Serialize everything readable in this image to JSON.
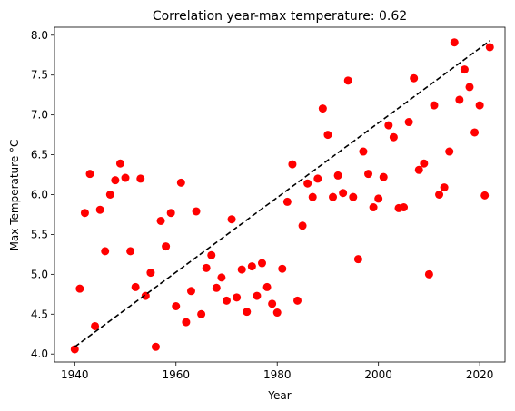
{
  "chart_data": {
    "type": "scatter",
    "title": "Correlation year-max temperature: 0.62",
    "xlabel": "Year",
    "ylabel": "Max Temperature °C",
    "xlim": [
      1936,
      2025
    ],
    "ylim": [
      3.9,
      8.1
    ],
    "grid": false,
    "legend": "none",
    "x_ticks": [
      1940,
      1960,
      1980,
      2000,
      2020
    ],
    "y_ticks": [
      4.0,
      4.5,
      5.0,
      5.5,
      6.0,
      6.5,
      7.0,
      7.5,
      8.0
    ],
    "x_tick_labels": [
      "1940",
      "1960",
      "1980",
      "2000",
      "2020"
    ],
    "y_tick_labels": [
      "4.0",
      "4.5",
      "5.0",
      "5.5",
      "6.0",
      "6.5",
      "7.0",
      "7.5",
      "8.0"
    ],
    "series": [
      {
        "marker": "circle",
        "color": "#ff0000",
        "points": [
          [
            1940,
            4.06
          ],
          [
            1941,
            4.82
          ],
          [
            1942,
            5.77
          ],
          [
            1943,
            6.26
          ],
          [
            1944,
            4.35
          ],
          [
            1945,
            5.81
          ],
          [
            1946,
            5.29
          ],
          [
            1947,
            6.0
          ],
          [
            1948,
            6.18
          ],
          [
            1949,
            6.39
          ],
          [
            1950,
            6.21
          ],
          [
            1951,
            5.29
          ],
          [
            1952,
            4.84
          ],
          [
            1953,
            6.2
          ],
          [
            1954,
            4.73
          ],
          [
            1955,
            5.02
          ],
          [
            1956,
            4.09
          ],
          [
            1957,
            5.67
          ],
          [
            1958,
            5.35
          ],
          [
            1959,
            5.77
          ],
          [
            1960,
            4.6
          ],
          [
            1961,
            6.15
          ],
          [
            1962,
            4.4
          ],
          [
            1963,
            4.79
          ],
          [
            1964,
            5.79
          ],
          [
            1965,
            4.5
          ],
          [
            1966,
            5.08
          ],
          [
            1967,
            5.24
          ],
          [
            1968,
            4.83
          ],
          [
            1969,
            4.96
          ],
          [
            1970,
            4.67
          ],
          [
            1971,
            5.69
          ],
          [
            1972,
            4.71
          ],
          [
            1973,
            5.06
          ],
          [
            1974,
            4.53
          ],
          [
            1975,
            5.1
          ],
          [
            1976,
            4.73
          ],
          [
            1977,
            5.14
          ],
          [
            1978,
            4.84
          ],
          [
            1979,
            4.63
          ],
          [
            1980,
            4.52
          ],
          [
            1981,
            5.07
          ],
          [
            1982,
            5.91
          ],
          [
            1983,
            6.38
          ],
          [
            1984,
            4.67
          ],
          [
            1985,
            5.61
          ],
          [
            1986,
            6.14
          ],
          [
            1987,
            5.97
          ],
          [
            1988,
            6.2
          ],
          [
            1989,
            7.08
          ],
          [
            1990,
            6.75
          ],
          [
            1991,
            5.97
          ],
          [
            1992,
            6.24
          ],
          [
            1993,
            6.02
          ],
          [
            1994,
            7.43
          ],
          [
            1995,
            5.97
          ],
          [
            1996,
            5.19
          ],
          [
            1997,
            6.54
          ],
          [
            1998,
            6.26
          ],
          [
            1999,
            5.84
          ],
          [
            2000,
            5.95
          ],
          [
            2001,
            6.22
          ],
          [
            2002,
            6.87
          ],
          [
            2003,
            6.72
          ],
          [
            2004,
            5.83
          ],
          [
            2005,
            5.84
          ],
          [
            2006,
            6.91
          ],
          [
            2007,
            7.46
          ],
          [
            2008,
            6.31
          ],
          [
            2009,
            6.39
          ],
          [
            2010,
            5.0
          ],
          [
            2011,
            7.12
          ],
          [
            2012,
            6.0
          ],
          [
            2013,
            6.09
          ],
          [
            2014,
            6.54
          ],
          [
            2015,
            7.91
          ],
          [
            2016,
            7.19
          ],
          [
            2017,
            7.57
          ],
          [
            2018,
            7.35
          ],
          [
            2019,
            6.78
          ],
          [
            2020,
            7.12
          ],
          [
            2021,
            5.99
          ],
          [
            2022,
            7.85
          ]
        ]
      }
    ],
    "trendline": {
      "style": "dashed",
      "color": "#000000",
      "points": [
        [
          1940,
          4.09
        ],
        [
          2022,
          7.93
        ]
      ]
    }
  }
}
